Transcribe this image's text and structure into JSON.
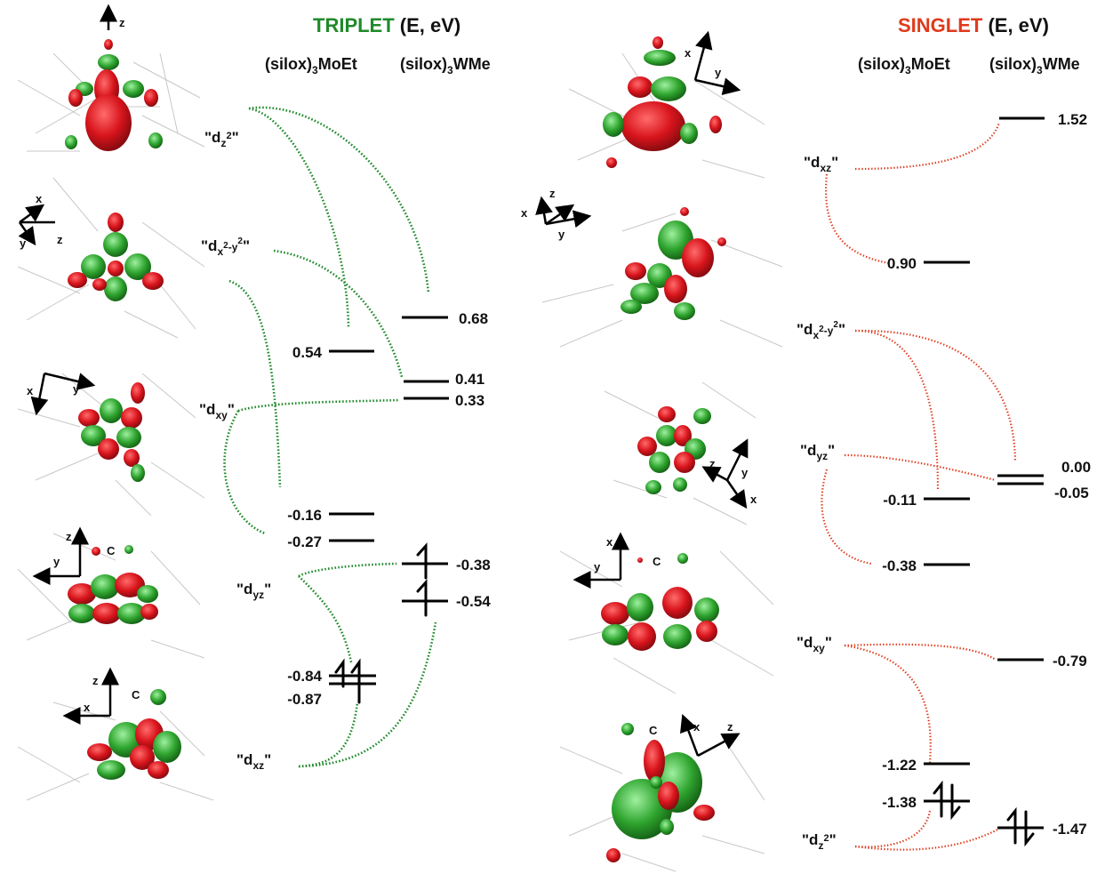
{
  "triplet": {
    "title": "TRIPLET",
    "title_suffix": " (E, eV)",
    "title_color": "#1f8a2a",
    "col_mo": "(silox)",
    "col_mo_sub": "3",
    "col_mo_tail": "MoEt",
    "col_w": "(silox)",
    "col_w_sub": "3",
    "col_w_tail": "WMe",
    "orbitals": {
      "dz2": {
        "open": "\"d",
        "sub": "z",
        "sup": "2",
        "close": "\""
      },
      "dx2y2": {
        "open": "\"d",
        "sub": "x",
        "sup1": "2",
        "mid": "-y",
        "sup2": "2",
        "close": "\""
      },
      "dxy": {
        "open": "\"d",
        "sub": "xy",
        "close": "\""
      },
      "dyz": {
        "open": "\"d",
        "sub": "yz",
        "close": "\""
      },
      "dxz": {
        "open": "\"d",
        "sub": "xz",
        "close": "\""
      }
    },
    "mo_levels": [
      "0.54",
      "-0.16",
      "-0.27",
      "-0.84",
      "-0.87"
    ],
    "w_levels": [
      "0.68",
      "0.41",
      "0.33",
      "-0.38",
      "-0.54"
    ]
  },
  "singlet": {
    "title": "SINGLET",
    "title_suffix": " (E, eV)",
    "title_color": "#e03a1c",
    "col_mo": "(silox)",
    "col_mo_sub": "3",
    "col_mo_tail": "MoEt",
    "col_w": "(silox)",
    "col_w_sub": "3",
    "col_w_tail": "WMe",
    "orbitals": {
      "dxz": {
        "open": "\"d",
        "sub": "xz",
        "close": "\""
      },
      "dx2y2": {
        "open": "\"d",
        "sub": "x",
        "sup1": "2",
        "mid": "-y",
        "sup2": "2",
        "close": "\""
      },
      "dyz": {
        "open": "\"d",
        "sub": "yz",
        "close": "\""
      },
      "dxy": {
        "open": "\"d",
        "sub": "xy",
        "close": "\""
      },
      "dz2": {
        "open": "\"d",
        "sub": "z",
        "sup": "2",
        "close": "\""
      }
    },
    "mo_levels": [
      "0.90",
      "-0.11",
      "-0.38",
      "-1.22",
      "-1.38"
    ],
    "w_levels": [
      "1.52",
      "0.00",
      "-0.05",
      "-0.79",
      "-1.47"
    ]
  },
  "axes": {
    "x": "x",
    "y": "y",
    "z": "z"
  },
  "atom_label": "C",
  "colors": {
    "lobe_red": "#d8141c",
    "lobe_green": "#2fa52f",
    "mesh": "#c8c8c8"
  }
}
